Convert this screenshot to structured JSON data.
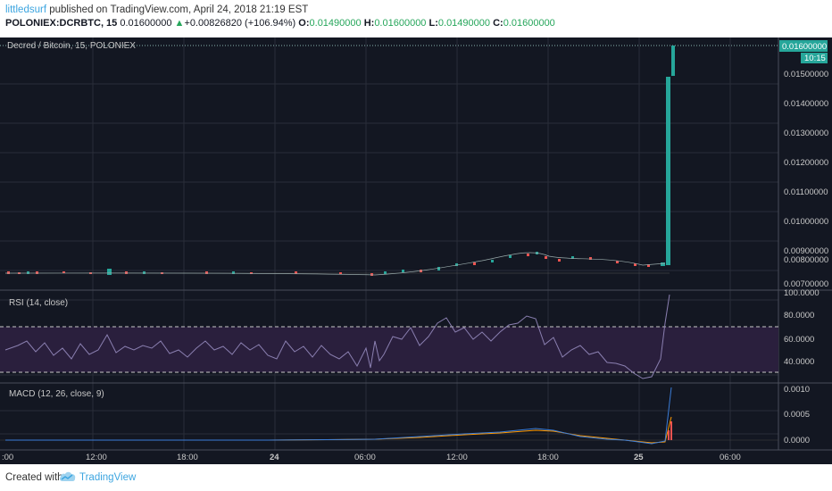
{
  "header": {
    "username": "littledsurf",
    "published_text": "published on TradingView.com, April 24, 2018 21:19 EST",
    "symbol": "POLONIEX:DCRBTC, 15",
    "last": "0.01600000",
    "change_arrow": "▲",
    "change": "+0.00826820 (+106.94%)",
    "o_label": "O:",
    "o_value": "0.01490000",
    "h_label": "H:",
    "h_value": "0.01600000",
    "l_label": "L:",
    "l_value": "0.01490000",
    "c_label": "C:",
    "c_value": "0.01600000"
  },
  "main_pane": {
    "legend": "Decred / Bitcoin, 15, POLONIEX",
    "price_labels": [
      "0.01500000",
      "0.01400000",
      "0.01300000",
      "0.01200000",
      "0.01100000",
      "0.01000000",
      "0.00900000",
      "0.00800000",
      "0.00700000"
    ],
    "last_price_tag": "0.01600000",
    "countdown_tag": "10:15"
  },
  "rsi_pane": {
    "legend": "RSI (14, close)",
    "labels": [
      "100.0000",
      "80.0000",
      "60.0000",
      "40.0000"
    ]
  },
  "macd_pane": {
    "legend": "MACD (12, 26, close, 9)",
    "labels": [
      "0.0010",
      "0.0005",
      "0.0000"
    ]
  },
  "time_axis": {
    "labels": [
      ":00",
      "12:00",
      "18:00",
      "24",
      "06:00",
      "12:00",
      "18:00",
      "25",
      "06:00"
    ]
  },
  "footer": {
    "created_with": "Created with",
    "brand": "TradingView"
  },
  "colors": {
    "background": "#131722",
    "up": "#26a69a",
    "down": "#ef5350",
    "rsi_band": "#2a1f3d",
    "macd_line": "#2962ff",
    "signal_line": "#ff6d00",
    "link": "#3ca5e0"
  }
}
